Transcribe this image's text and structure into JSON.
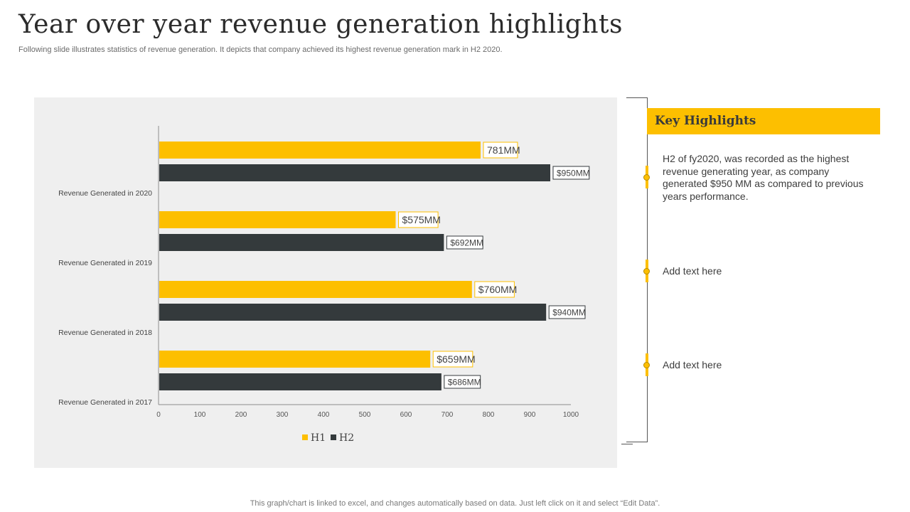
{
  "page": {
    "title": "Year over year revenue generation highlights",
    "subtitle": "Following slide illustrates statistics of revenue generation. It depicts that company achieved its highest revenue generation mark in H2 2020.",
    "footer": "This graph/chart is linked to excel,  and changes automatically based on data. Just left click on it and select “Edit Data”."
  },
  "highlights": {
    "title": "Key Highlights",
    "items": [
      "H2 of fy2020, was recorded as the highest revenue generating year, as company generated $950 MM  as compared to previous years performance.",
      "Add text here",
      "Add text here"
    ]
  },
  "colors": {
    "h1": "#fdbf00",
    "h2": "#343a3c",
    "panel": "#efefef",
    "accent": "#fdbf00"
  },
  "chart_data": {
    "type": "bar",
    "orientation": "horizontal",
    "title": "",
    "xlabel": "",
    "ylabel": "",
    "xlim": [
      0,
      1000
    ],
    "xticks": [
      0,
      100,
      200,
      300,
      400,
      500,
      600,
      700,
      800,
      900,
      1000
    ],
    "grid": false,
    "legend_position": "bottom",
    "categories": [
      "Revenue Generated in 2020",
      "Revenue Generated in 2019",
      "Revenue Generated in 2018",
      "Revenue Generated in 2017"
    ],
    "series": [
      {
        "name": "H1",
        "color": "#fdbf00",
        "values": [
          781,
          575,
          760,
          659
        ],
        "labels": [
          "781MM",
          "$575MM",
          "$760MM",
          "$659MM"
        ]
      },
      {
        "name": "H2",
        "color": "#343a3c",
        "values": [
          950,
          692,
          940,
          686
        ],
        "labels": [
          "$950MM",
          "$692MM",
          "$940MM",
          "$686MM"
        ]
      }
    ]
  }
}
